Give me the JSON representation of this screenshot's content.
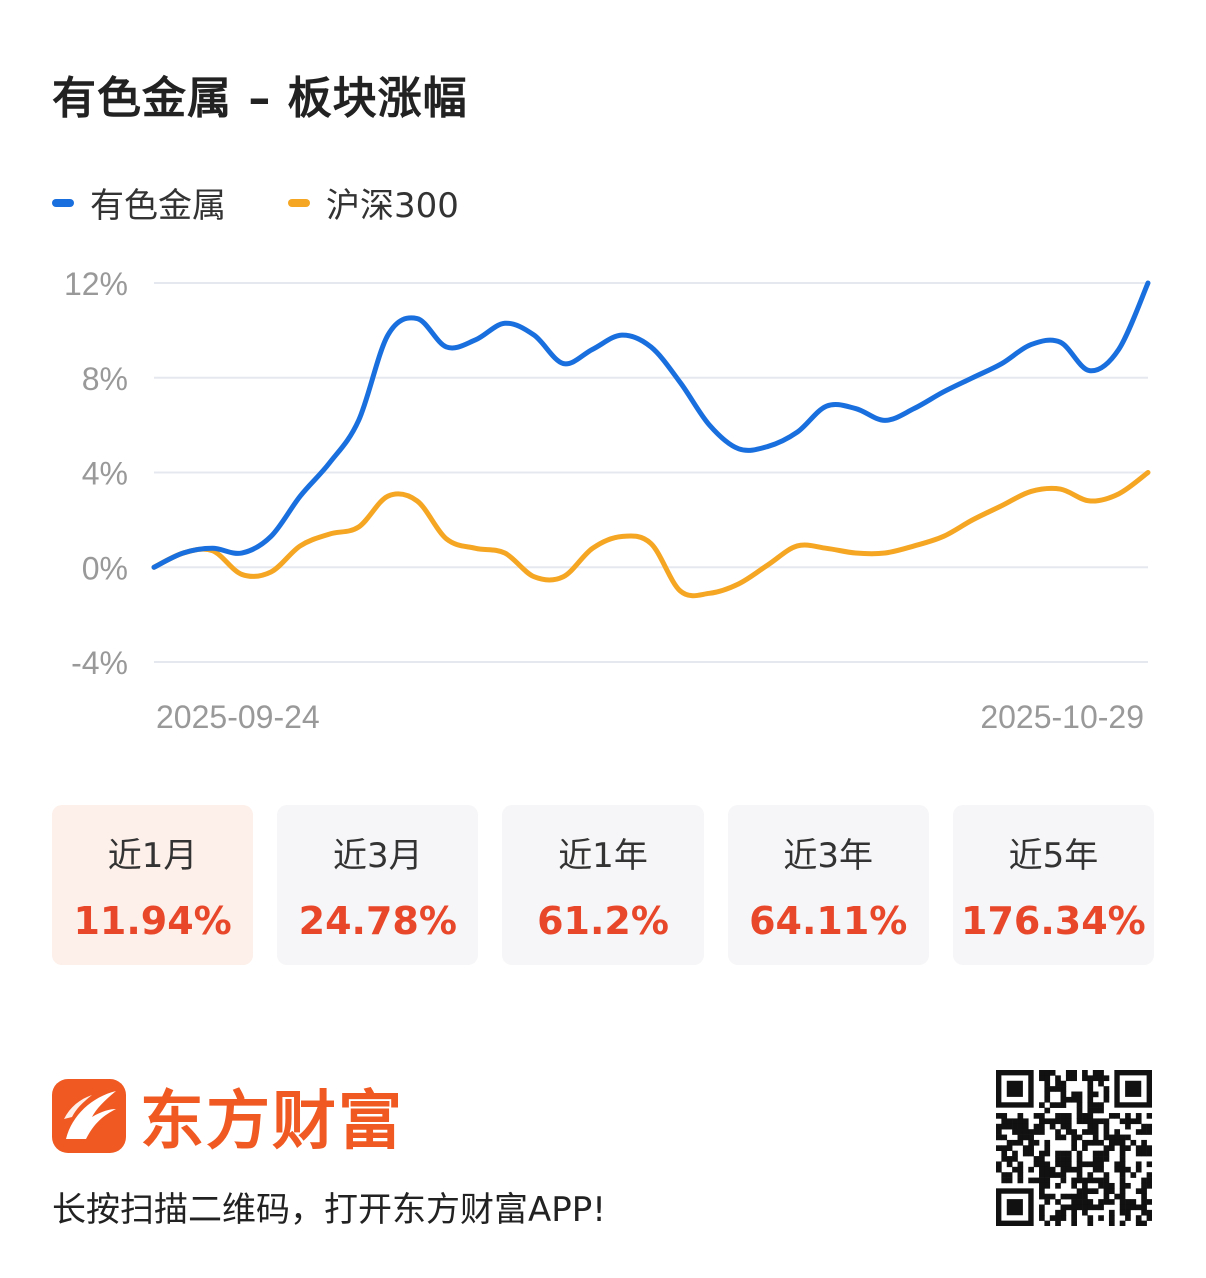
{
  "title": "有色金属 – 板块涨幅",
  "legend": [
    {
      "name": "有色金属",
      "color": "#1a6fde"
    },
    {
      "name": "沪深300",
      "color": "#f5a623"
    }
  ],
  "chart_data": {
    "type": "line",
    "ylim": [
      -4,
      12
    ],
    "y_ticks": [
      "12%",
      "8%",
      "4%",
      "0%",
      "-4%"
    ],
    "y_tick_values": [
      12,
      8,
      4,
      0,
      -4
    ],
    "x_start_label": "2025-09-24",
    "x_end_label": "2025-10-29",
    "grid": true,
    "legend_position": "top-left",
    "series": [
      {
        "name": "有色金属",
        "color": "#1a6fde",
        "values": [
          0,
          0.6,
          0.8,
          0.6,
          1.3,
          3.0,
          4.4,
          6.2,
          9.8,
          10.5,
          9.3,
          9.6,
          10.3,
          9.8,
          8.6,
          9.2,
          9.8,
          9.3,
          7.8,
          6.0,
          5.0,
          5.1,
          5.7,
          6.8,
          6.7,
          6.2,
          6.7,
          7.4,
          8.0,
          8.6,
          9.4,
          9.5,
          8.3,
          9.2,
          12.0
        ]
      },
      {
        "name": "沪深300",
        "color": "#f5a623",
        "values": [
          0,
          0.6,
          0.7,
          -0.3,
          -0.2,
          0.9,
          1.4,
          1.7,
          3.0,
          2.8,
          1.2,
          0.8,
          0.6,
          -0.4,
          -0.4,
          0.8,
          1.3,
          1.0,
          -1.0,
          -1.1,
          -0.7,
          0.1,
          0.9,
          0.8,
          0.6,
          0.6,
          0.9,
          1.3,
          2.0,
          2.6,
          3.2,
          3.3,
          2.8,
          3.1,
          4.0
        ]
      }
    ]
  },
  "periods": [
    {
      "label": "近1月",
      "value": "11.94%"
    },
    {
      "label": "近3月",
      "value": "24.78%"
    },
    {
      "label": "近1年",
      "value": "61.2%"
    },
    {
      "label": "近3年",
      "value": "64.11%"
    },
    {
      "label": "近5年",
      "value": "176.34%"
    }
  ],
  "brand": {
    "name": "东方财富",
    "color": "#f05a22"
  },
  "cta": "长按扫描二维码，打开东方财富APP!"
}
